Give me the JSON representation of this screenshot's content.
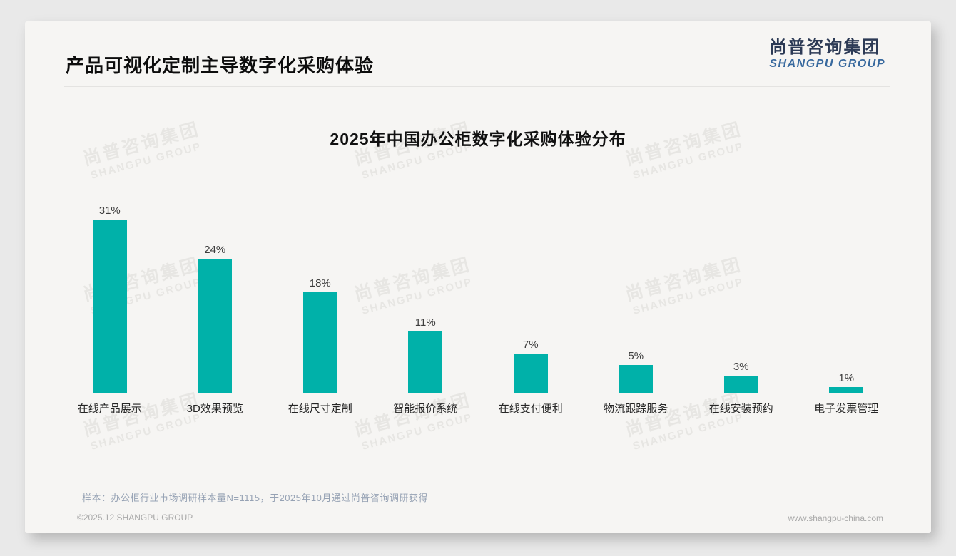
{
  "page": {
    "title": "产品可视化定制主导数字化采购体验",
    "logo": {
      "cn": "尚普咨询集团",
      "en": "SHANGPU GROUP"
    },
    "watermark": {
      "cn": "尚普咨询集团",
      "en": "SHANGPU GROUP"
    },
    "note": "样本：办公柜行业市场调研样本量N=1115，于2025年10月通过尚普咨询调研获得",
    "footer": {
      "left": "©2025.12 SHANGPU GROUP",
      "right": "www.shangpu-china.com"
    }
  },
  "colors": {
    "bar": "#00b1a9",
    "logo_cn": "#2c3a55",
    "logo_en": "#38699e",
    "card_bg": "#f6f5f3",
    "page_bg": "#e9e9e9"
  },
  "chart_data": {
    "type": "bar",
    "title": "2025年中国办公柜数字化采购体验分布",
    "categories": [
      "在线产品展示",
      "3D效果预览",
      "在线尺寸定制",
      "智能报价系统",
      "在线支付便利",
      "物流跟踪服务",
      "在线安装预约",
      "电子发票管理"
    ],
    "values": [
      31,
      24,
      18,
      11,
      7,
      5,
      3,
      1
    ],
    "unit": "%",
    "value_labels": [
      "31%",
      "24%",
      "18%",
      "11%",
      "7%",
      "5%",
      "3%",
      "1%"
    ],
    "xlabel": "",
    "ylabel": "",
    "ylim": [
      0,
      35
    ],
    "grid": false,
    "legend": false,
    "bar_color": "#00b1a9"
  }
}
